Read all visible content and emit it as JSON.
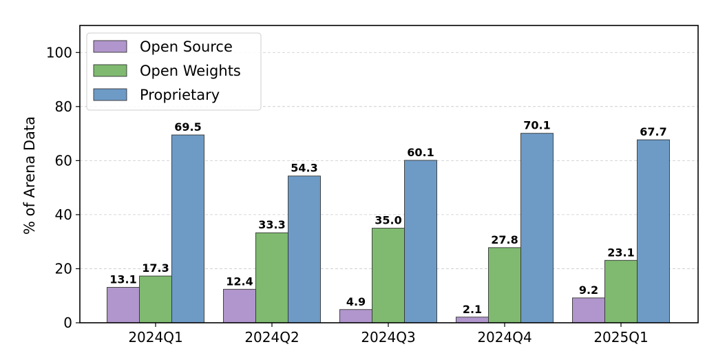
{
  "chart_data": {
    "type": "bar",
    "categories": [
      "2024Q1",
      "2024Q2",
      "2024Q3",
      "2024Q4",
      "2025Q1"
    ],
    "series": [
      {
        "name": "Open Source",
        "values": [
          13.1,
          12.4,
          4.9,
          2.1,
          9.2
        ],
        "color": "#b096cc"
      },
      {
        "name": "Open Weights",
        "values": [
          17.3,
          33.3,
          35.0,
          27.8,
          23.1
        ],
        "color": "#7fba70"
      },
      {
        "name": "Proprietary",
        "values": [
          69.5,
          54.3,
          60.1,
          70.1,
          67.7
        ],
        "color": "#6e9bc6"
      }
    ],
    "ylabel": "% of Arena Data",
    "ylim": [
      0,
      110
    ],
    "yticks": [
      0,
      20,
      40,
      60,
      80,
      100
    ],
    "grid": true,
    "legend_position": "top-left"
  }
}
